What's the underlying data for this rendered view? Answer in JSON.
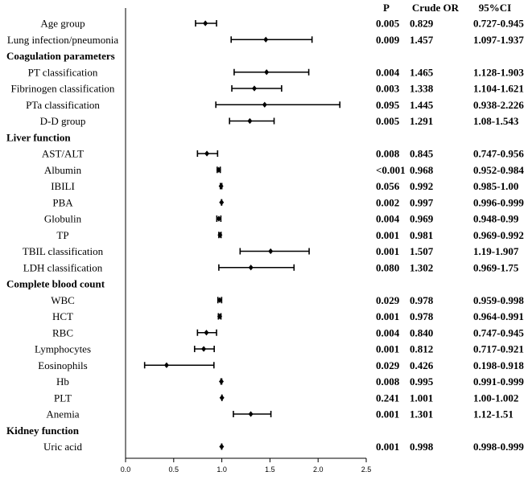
{
  "chart_data": {
    "type": "forest",
    "title": "",
    "xlabel": "",
    "ylabel": "",
    "xlim": [
      0.0,
      2.5
    ],
    "xticks": [
      "0.0",
      "0.5",
      "1.0",
      "1.5",
      "2.0",
      "2.5"
    ],
    "xtick_values": [
      0.0,
      0.5,
      1.0,
      1.5,
      2.0,
      2.5
    ],
    "columns": [
      "P",
      "Crude OR",
      "95%CI"
    ],
    "rows": [
      {
        "label": "Age group",
        "kind": "item",
        "or": 0.829,
        "lo": 0.727,
        "hi": 0.945,
        "p": "0.005",
        "or_text": "0.829",
        "ci_text": "0.727-0.945"
      },
      {
        "label": "Lung infection/pneumonia",
        "kind": "item",
        "or": 1.457,
        "lo": 1.097,
        "hi": 1.937,
        "p": "0.009",
        "or_text": "1.457",
        "ci_text": "1.097-1.937"
      },
      {
        "label": "Coagulation parameters",
        "kind": "header"
      },
      {
        "label": "PT classification",
        "kind": "item",
        "or": 1.465,
        "lo": 1.128,
        "hi": 1.903,
        "p": "0.004",
        "or_text": "1.465",
        "ci_text": "1.128-1.903"
      },
      {
        "label": "Fibrinogen classification",
        "kind": "item",
        "or": 1.338,
        "lo": 1.104,
        "hi": 1.621,
        "p": "0.003",
        "or_text": "1.338",
        "ci_text": "1.104-1.621"
      },
      {
        "label": "PTa  classification",
        "kind": "item",
        "or": 1.445,
        "lo": 0.938,
        "hi": 2.226,
        "p": "0.095",
        "or_text": "1.445",
        "ci_text": "0.938-2.226"
      },
      {
        "label": "D-D group",
        "kind": "item",
        "or": 1.291,
        "lo": 1.08,
        "hi": 1.543,
        "p": "0.005",
        "or_text": "1.291",
        "ci_text": "1.08-1.543"
      },
      {
        "label": "Liver function",
        "kind": "header"
      },
      {
        "label": "AST/ALT",
        "kind": "item",
        "or": 0.845,
        "lo": 0.747,
        "hi": 0.956,
        "p": "0.008",
        "or_text": "0.845",
        "ci_text": "0.747-0.956"
      },
      {
        "label": "Albumin",
        "kind": "item",
        "or": 0.968,
        "lo": 0.952,
        "hi": 0.984,
        "p": "<0.001",
        "or_text": "0.968",
        "ci_text": "0.952-0.984"
      },
      {
        "label": "IBILI",
        "kind": "item",
        "or": 0.992,
        "lo": 0.985,
        "hi": 1.0,
        "p": "0.056",
        "or_text": "0.992",
        "ci_text": "0.985-1.00"
      },
      {
        "label": "PBA",
        "kind": "item",
        "or": 0.997,
        "lo": 0.996,
        "hi": 0.999,
        "p": "0.002",
        "or_text": "0.997",
        "ci_text": "0.996-0.999"
      },
      {
        "label": "Globulin",
        "kind": "item",
        "or": 0.969,
        "lo": 0.948,
        "hi": 0.99,
        "p": "0.004",
        "or_text": "0.969",
        "ci_text": "0.948-0.99"
      },
      {
        "label": "TP",
        "kind": "item",
        "or": 0.981,
        "lo": 0.969,
        "hi": 0.992,
        "p": "0.001",
        "or_text": "0.981",
        "ci_text": "0.969-0.992"
      },
      {
        "label": "TBIL classification",
        "kind": "item",
        "or": 1.507,
        "lo": 1.19,
        "hi": 1.907,
        "p": "0.001",
        "or_text": "1.507",
        "ci_text": "1.19-1.907"
      },
      {
        "label": "LDH classification",
        "kind": "item",
        "or": 1.302,
        "lo": 0.969,
        "hi": 1.75,
        "p": "0.080",
        "or_text": "1.302",
        "ci_text": "0.969-1.75"
      },
      {
        "label": "Complete blood count",
        "kind": "header"
      },
      {
        "label": "WBC",
        "kind": "item",
        "or": 0.978,
        "lo": 0.959,
        "hi": 0.998,
        "p": "0.029",
        "or_text": "0.978",
        "ci_text": "0.959-0.998"
      },
      {
        "label": "HCT",
        "kind": "item",
        "or": 0.978,
        "lo": 0.964,
        "hi": 0.991,
        "p": "0.001",
        "or_text": "0.978",
        "ci_text": "0.964-0.991"
      },
      {
        "label": "RBC",
        "kind": "item",
        "or": 0.84,
        "lo": 0.747,
        "hi": 0.945,
        "p": "0.004",
        "or_text": "0.840",
        "ci_text": "0.747-0.945"
      },
      {
        "label": "Lymphocytes",
        "kind": "item",
        "or": 0.812,
        "lo": 0.717,
        "hi": 0.921,
        "p": "0.001",
        "or_text": "0.812",
        "ci_text": "0.717-0.921"
      },
      {
        "label": "Eosinophils",
        "kind": "item",
        "or": 0.426,
        "lo": 0.198,
        "hi": 0.918,
        "p": "0.029",
        "or_text": "0.426",
        "ci_text": "0.198-0.918"
      },
      {
        "label": "Hb",
        "kind": "item",
        "or": 0.995,
        "lo": 0.991,
        "hi": 0.999,
        "p": "0.008",
        "or_text": "0.995",
        "ci_text": "0.991-0.999"
      },
      {
        "label": "PLT",
        "kind": "item",
        "or": 1.001,
        "lo": 1.0,
        "hi": 1.002,
        "p": "0.241",
        "or_text": "1.001",
        "ci_text": "1.00-1.002"
      },
      {
        "label": "Anemia",
        "kind": "item",
        "or": 1.301,
        "lo": 1.12,
        "hi": 1.51,
        "p": "0.001",
        "or_text": "1.301",
        "ci_text": "1.12-1.51"
      },
      {
        "label": "Kidney function",
        "kind": "header"
      },
      {
        "label": "Uric acid",
        "kind": "item",
        "or": 0.998,
        "lo": 0.998,
        "hi": 0.999,
        "p": "0.001",
        "or_text": "0.998",
        "ci_text": "0.998-0.999"
      }
    ]
  }
}
